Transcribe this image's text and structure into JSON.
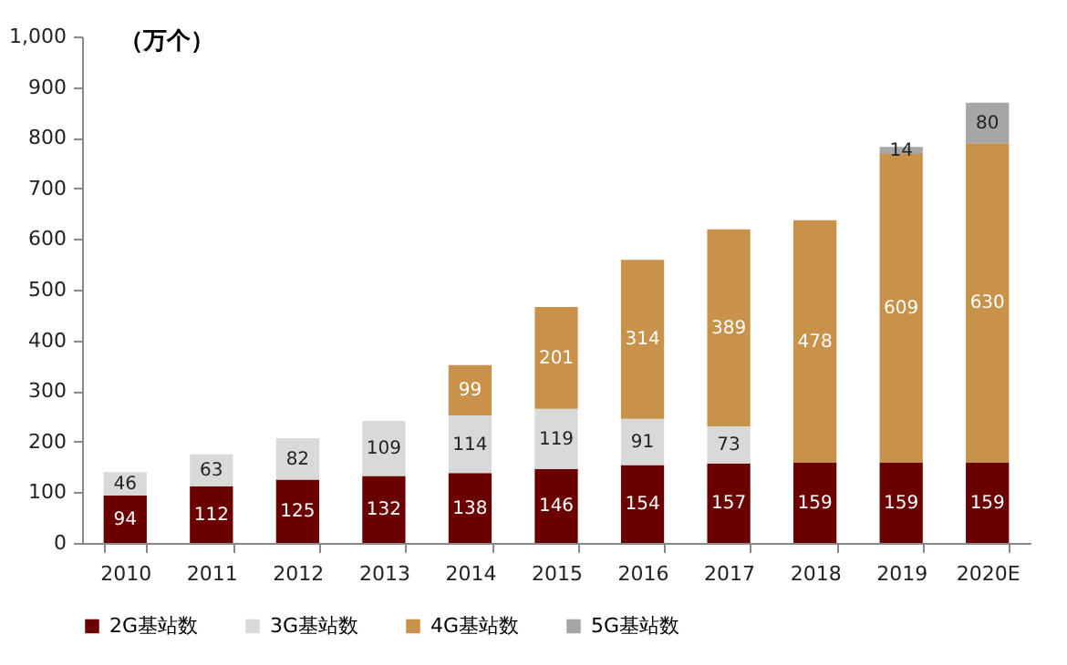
{
  "chart_data": {
    "type": "bar",
    "stacked": true,
    "ylabel": "（万个）",
    "categories": [
      "2010",
      "2011",
      "2012",
      "2013",
      "2014",
      "2015",
      "2016",
      "2017",
      "2018",
      "2019",
      "2020E"
    ],
    "series": [
      {
        "name": "2G基站数",
        "color": "#6b0000",
        "values": [
          94,
          112,
          125,
          132,
          138,
          146,
          154,
          157,
          159,
          159,
          159
        ],
        "value_labels": [
          "94",
          "112",
          "125",
          "132",
          "138",
          "146",
          "154",
          "157",
          "159",
          "159",
          "159"
        ]
      },
      {
        "name": "3G基站数",
        "color": "#d9d9d9",
        "values": [
          46,
          63,
          82,
          109,
          114,
          119,
          91,
          73,
          null,
          null,
          null
        ],
        "value_labels": [
          "46",
          "63",
          "82",
          "109",
          "114",
          "119",
          "91",
          "73",
          null,
          null,
          null
        ]
      },
      {
        "name": "4G基站数",
        "color": "#c8924a",
        "values": [
          null,
          null,
          null,
          null,
          99,
          201,
          314,
          389,
          478,
          609,
          630
        ],
        "value_labels": [
          null,
          null,
          null,
          null,
          "99",
          "201",
          "314",
          "389",
          "478",
          "609",
          "630"
        ]
      },
      {
        "name": "5G基站数",
        "color": "#a6a6a6",
        "values": [
          null,
          null,
          null,
          null,
          null,
          null,
          null,
          null,
          null,
          14,
          80
        ],
        "value_labels": [
          null,
          null,
          null,
          null,
          null,
          null,
          null,
          null,
          null,
          "14",
          "80"
        ]
      }
    ],
    "ylim": [
      0,
      1000
    ],
    "yticks": [
      0,
      100,
      200,
      300,
      400,
      500,
      600,
      700,
      800,
      900,
      {
        "value": 1000,
        "label": "1,000"
      }
    ],
    "grid": false,
    "legend": "bottom"
  }
}
